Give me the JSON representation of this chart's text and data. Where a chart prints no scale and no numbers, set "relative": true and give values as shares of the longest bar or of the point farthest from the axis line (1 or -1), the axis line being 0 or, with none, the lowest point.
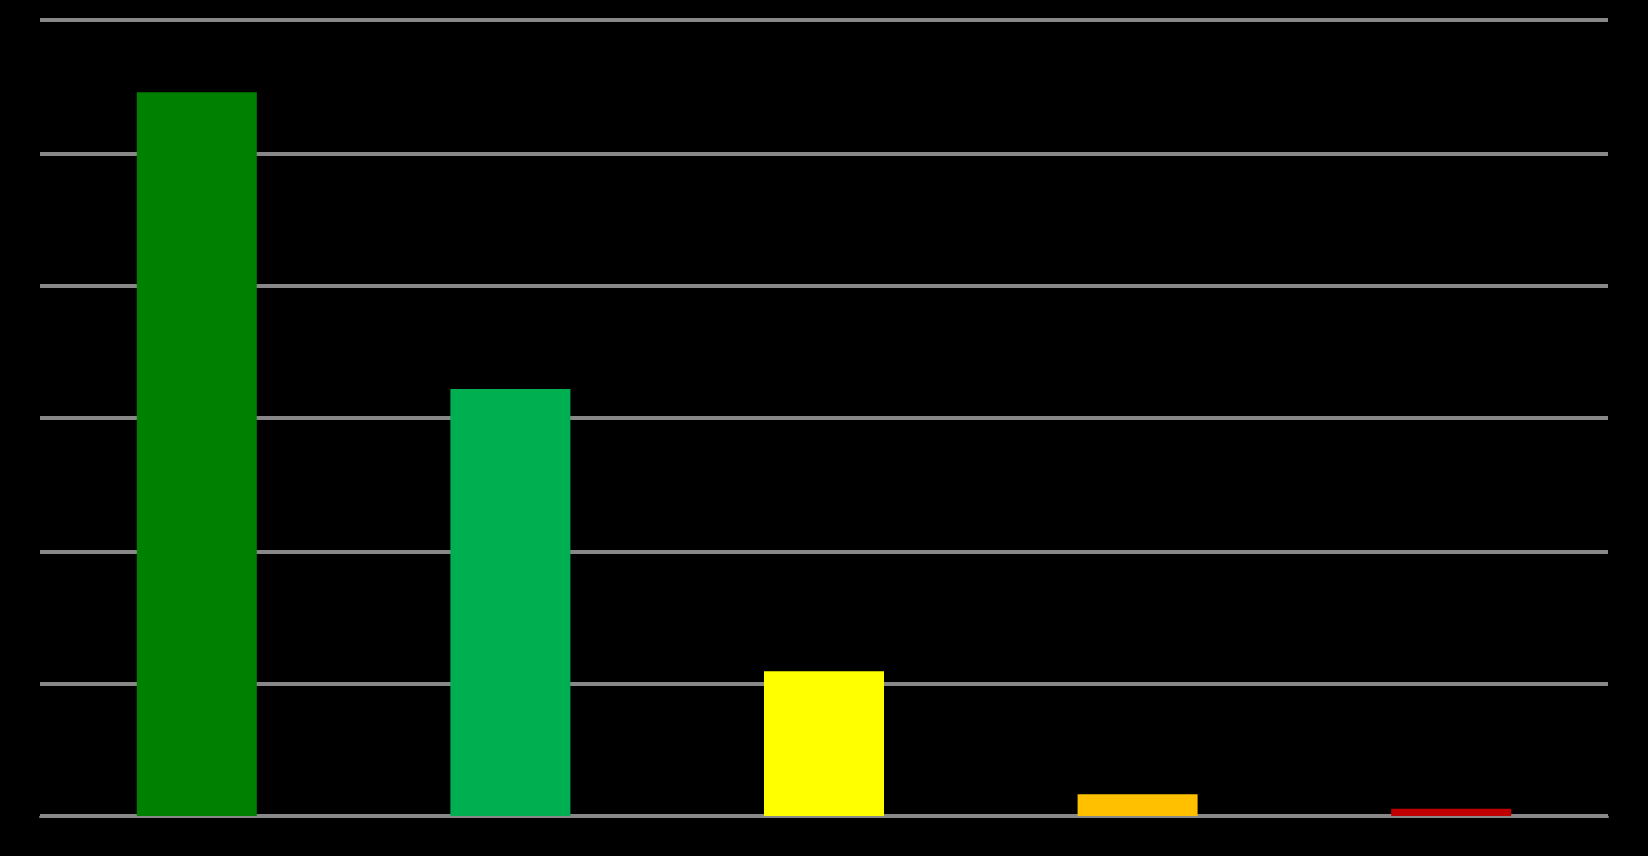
{
  "chart_data": {
    "type": "bar",
    "relative": true,
    "grid": true,
    "categories": [
      null,
      null,
      null,
      null,
      null
    ],
    "values": [
      1,
      0.59,
      0.2,
      0.03,
      0.01
    ],
    "colors": [
      "#008000",
      "#00b050",
      "#ffff00",
      "#ffc000",
      "#c00000"
    ]
  }
}
